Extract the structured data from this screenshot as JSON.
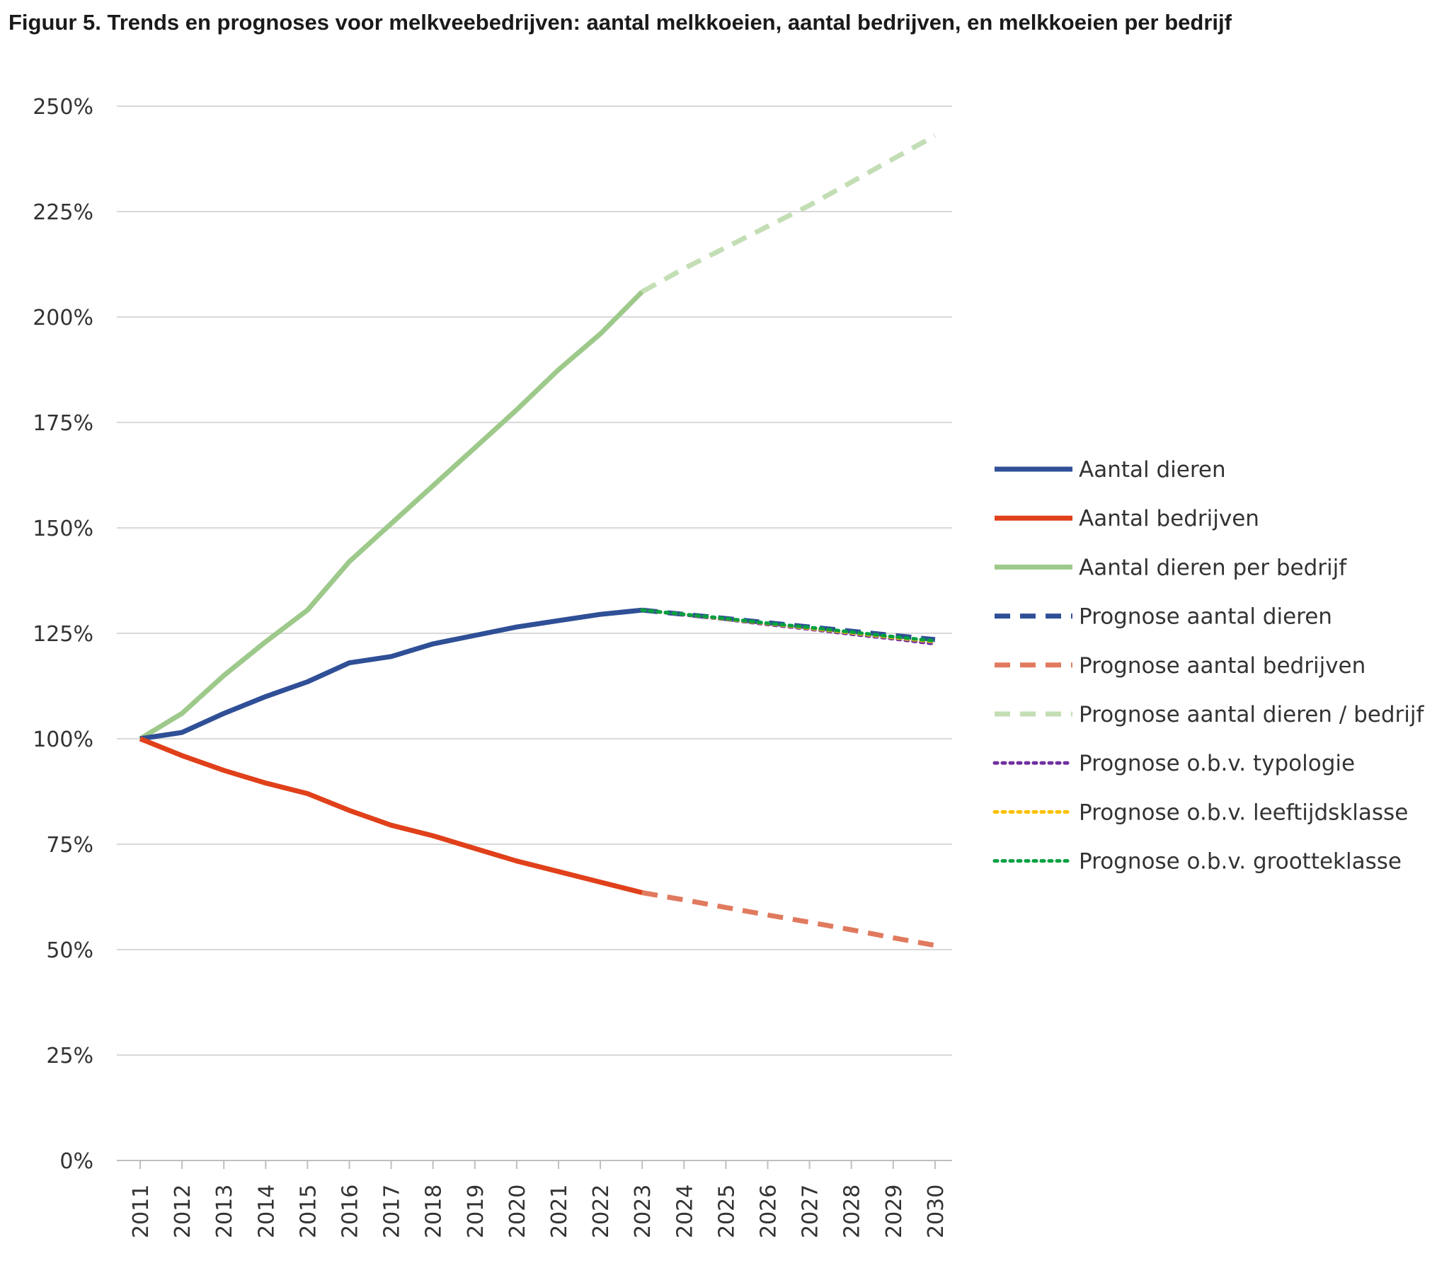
{
  "chart_data": {
    "type": "line",
    "title": "Figuur 5. Trends en prognoses voor melkveebedrijven: aantal melkkoeien, aantal bedrijven, en melkkoeien per bedrijf",
    "xlabel": "",
    "ylabel": "",
    "x": [
      "2011",
      "2012",
      "2013",
      "2014",
      "2015",
      "2016",
      "2017",
      "2018",
      "2019",
      "2020",
      "2021",
      "2022",
      "2023",
      "2024",
      "2025",
      "2026",
      "2027",
      "2028",
      "2029",
      "2030"
    ],
    "y_ticks": [
      "0%",
      "25%",
      "50%",
      "75%",
      "100%",
      "125%",
      "150%",
      "175%",
      "200%",
      "225%",
      "250%"
    ],
    "y_tick_values": [
      0,
      25,
      50,
      75,
      100,
      125,
      150,
      175,
      200,
      225,
      250
    ],
    "ylim": [
      0,
      250
    ],
    "grid": true,
    "legend_position": "right",
    "series": [
      {
        "name": "Aantal dieren",
        "color": "#2f4f96",
        "style": "solid",
        "x": [
          "2011",
          "2012",
          "2013",
          "2014",
          "2015",
          "2016",
          "2017",
          "2018",
          "2019",
          "2020",
          "2021",
          "2022",
          "2023"
        ],
        "values": [
          100,
          101.5,
          106,
          110,
          113.5,
          118,
          119.5,
          122.5,
          124.5,
          126.5,
          128,
          129.5,
          130.5
        ]
      },
      {
        "name": "Aantal bedrijven",
        "color": "#e0401a",
        "style": "solid",
        "x": [
          "2011",
          "2012",
          "2013",
          "2014",
          "2015",
          "2016",
          "2017",
          "2018",
          "2019",
          "2020",
          "2021",
          "2022",
          "2023"
        ],
        "values": [
          100,
          96,
          92.5,
          89.5,
          87,
          83,
          79.5,
          77,
          74,
          71,
          68.5,
          66,
          63.5
        ]
      },
      {
        "name": "Aantal dieren per bedrijf",
        "color": "#9dc98a",
        "style": "solid",
        "x": [
          "2011",
          "2012",
          "2013",
          "2014",
          "2015",
          "2016",
          "2017",
          "2018",
          "2019",
          "2020",
          "2021",
          "2022",
          "2023"
        ],
        "values": [
          100,
          106,
          115,
          123,
          130.5,
          142,
          151,
          160,
          169,
          178,
          187.5,
          196,
          206
        ]
      },
      {
        "name": "Prognose aantal dieren",
        "color": "#2f4f96",
        "style": "dashed",
        "x": [
          "2023",
          "2024",
          "2025",
          "2026",
          "2027",
          "2028",
          "2029",
          "2030"
        ],
        "values": [
          130.5,
          129.5,
          128.5,
          127.5,
          126.5,
          125.5,
          124.5,
          123.5
        ]
      },
      {
        "name": "Prognose aantal bedrijven",
        "color": "#e07a5f",
        "style": "dashed",
        "x": [
          "2023",
          "2024",
          "2025",
          "2026",
          "2027",
          "2028",
          "2029",
          "2030"
        ],
        "values": [
          63.5,
          61.8,
          60,
          58.2,
          56.5,
          54.7,
          52.8,
          51
        ]
      },
      {
        "name": "Prognose aantal dieren / bedrijf",
        "color": "#c3deb4",
        "style": "dashed",
        "x": [
          "2023",
          "2024",
          "2025",
          "2026",
          "2027",
          "2028",
          "2029",
          "2030"
        ],
        "values": [
          206,
          211.5,
          216.5,
          221.5,
          226.5,
          232,
          237.5,
          243
        ]
      },
      {
        "name": "Prognose o.b.v. typologie",
        "color": "#7030a0",
        "style": "dotted",
        "x": [
          "2023",
          "2024",
          "2025",
          "2026",
          "2027",
          "2028",
          "2029",
          "2030"
        ],
        "values": [
          130.5,
          129.4,
          128.3,
          127.1,
          126,
          124.8,
          123.7,
          122.5
        ]
      },
      {
        "name": "Prognose o.b.v. leeftijdsklasse",
        "color": "#ffc000",
        "style": "dotted",
        "x": [
          "2023",
          "2024",
          "2025",
          "2026",
          "2027",
          "2028",
          "2029",
          "2030"
        ],
        "values": [
          130.5,
          129.5,
          128.4,
          127.3,
          126.2,
          125.1,
          124,
          123
        ]
      },
      {
        "name": "Prognose o.b.v. grootteklasse",
        "color": "#00a040",
        "style": "dotted",
        "x": [
          "2023",
          "2024",
          "2025",
          "2026",
          "2027",
          "2028",
          "2029",
          "2030"
        ],
        "values": [
          130.5,
          129.5,
          128.5,
          127.4,
          126.4,
          125.3,
          124.2,
          123.2
        ]
      }
    ]
  }
}
